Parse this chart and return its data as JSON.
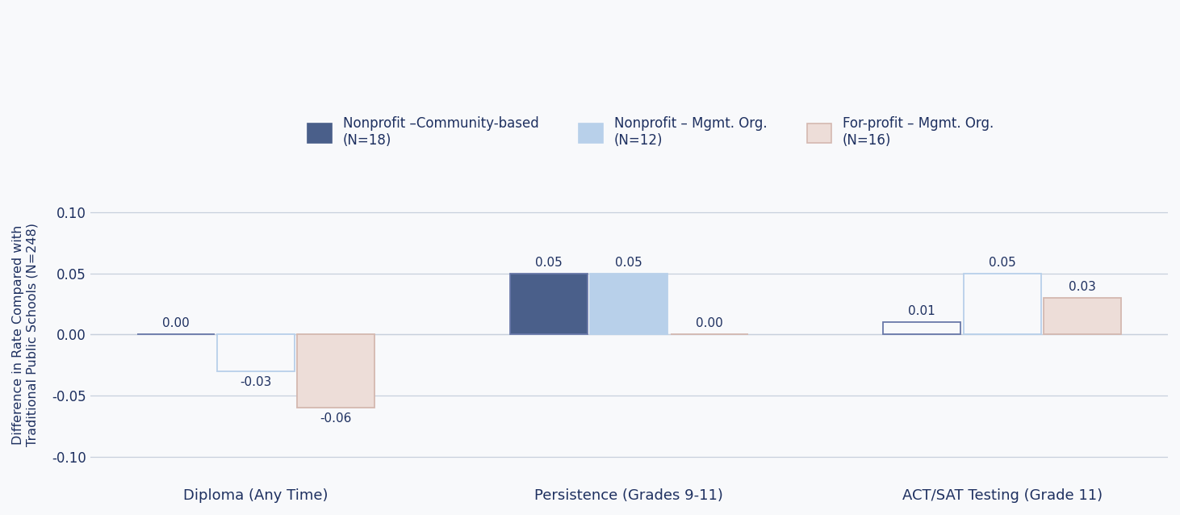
{
  "groups": [
    "Diploma (Any Time)",
    "Persistence (Grades 9-11)",
    "ACT/SAT Testing (Grade 11)"
  ],
  "series": [
    {
      "label": "Nonprofit –Community-based\n(N=18)",
      "values": [
        0.0,
        0.05,
        0.01
      ],
      "fill_color": "#4a5f8a",
      "edge_color": "#6878a8",
      "fill": [
        false,
        true,
        false
      ]
    },
    {
      "label": "Nonprofit – Mgmt. Org.\n(N=12)",
      "values": [
        -0.03,
        0.05,
        0.05
      ],
      "fill_color": "#b8d0ea",
      "edge_color": "#b8d0ea",
      "fill": [
        false,
        true,
        false
      ]
    },
    {
      "label": "For-profit – Mgmt. Org.\n(N=16)",
      "values": [
        -0.06,
        0.0,
        0.03
      ],
      "fill_color": "#edddd8",
      "edge_color": "#d4b8b0",
      "fill": [
        true,
        false,
        true
      ]
    }
  ],
  "ylim": [
    -0.115,
    0.115
  ],
  "yticks": [
    -0.1,
    -0.05,
    0.0,
    0.05,
    0.1
  ],
  "ylabel": "Difference in Rate Compared with\nTraditional Public Schools (N=248)",
  "bar_width": 0.28,
  "group_positions": [
    0.0,
    1.35,
    2.7
  ],
  "label_color": "#1e3060",
  "axis_color": "#c8d0dc",
  "background_color": "#f8f9fb",
  "text_color": "#1e3060",
  "legend_colors": [
    "#4a5f8a",
    "#b8d0ea",
    "#edddd8"
  ],
  "legend_edge_colors": [
    "#4a5f8a",
    "#b8d0ea",
    "#d4b8b0"
  ]
}
